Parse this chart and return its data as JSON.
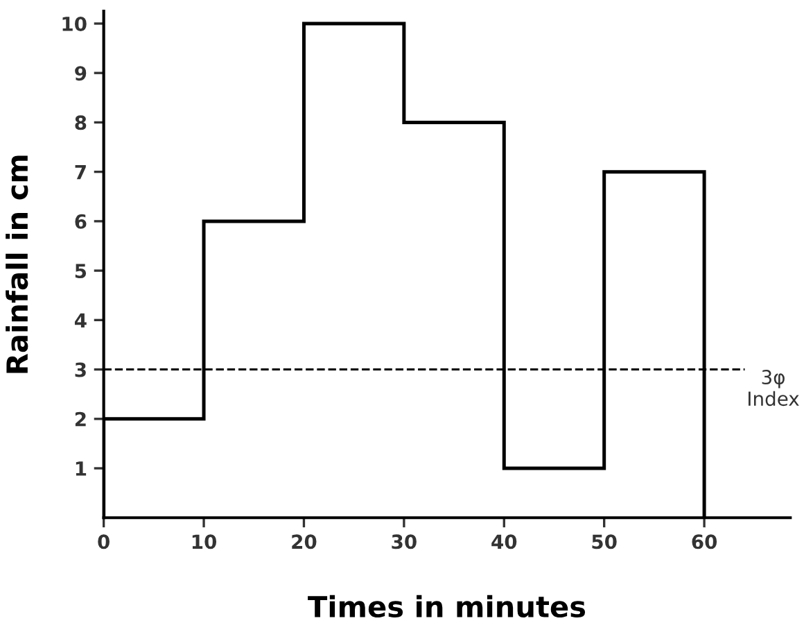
{
  "chart_data": {
    "type": "histogram",
    "xlabel": "Times in minutes",
    "ylabel": "Rainfall in cm",
    "bins": [
      0,
      10,
      20,
      30,
      40,
      50,
      60
    ],
    "values": [
      2,
      6,
      10,
      8,
      1,
      7
    ],
    "color": "#000000",
    "xlim": [
      0,
      68.6
    ],
    "xticks": [
      0,
      10,
      20,
      30,
      40,
      50,
      60
    ],
    "ylim": [
      0,
      10.25
    ],
    "yticks": [
      1,
      2,
      3,
      4,
      5,
      6,
      7,
      8,
      9,
      10
    ],
    "ref_lines": [
      {
        "axis": "y",
        "value": 3,
        "label": "3φ\nIndex",
        "line_style": "dashed",
        "color": "#000000"
      }
    ],
    "grid": false
  }
}
